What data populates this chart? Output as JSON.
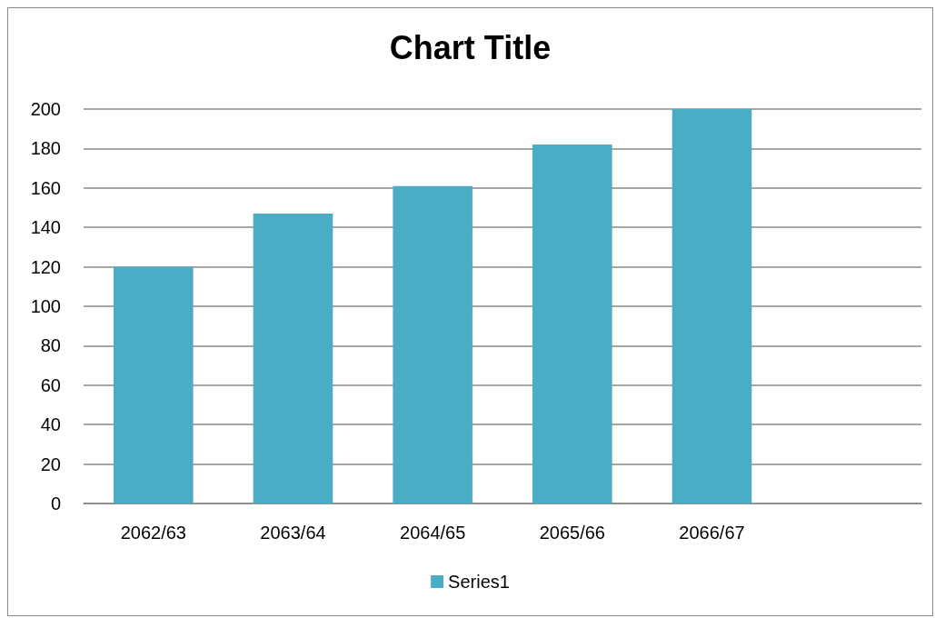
{
  "chart_data": {
    "type": "bar",
    "title": "Chart Title",
    "categories": [
      "2062/63",
      "2063/64",
      "2064/65",
      "2065/66",
      "2066/67",
      null
    ],
    "series": [
      {
        "name": "Series1",
        "color": "#4bacc6",
        "values": [
          120,
          147,
          161,
          182,
          200,
          null
        ]
      }
    ],
    "ylim": [
      0,
      200
    ],
    "yticks": [
      0,
      20,
      40,
      60,
      80,
      100,
      120,
      140,
      160,
      180,
      200
    ],
    "grid": "y",
    "legend": "bottom"
  }
}
